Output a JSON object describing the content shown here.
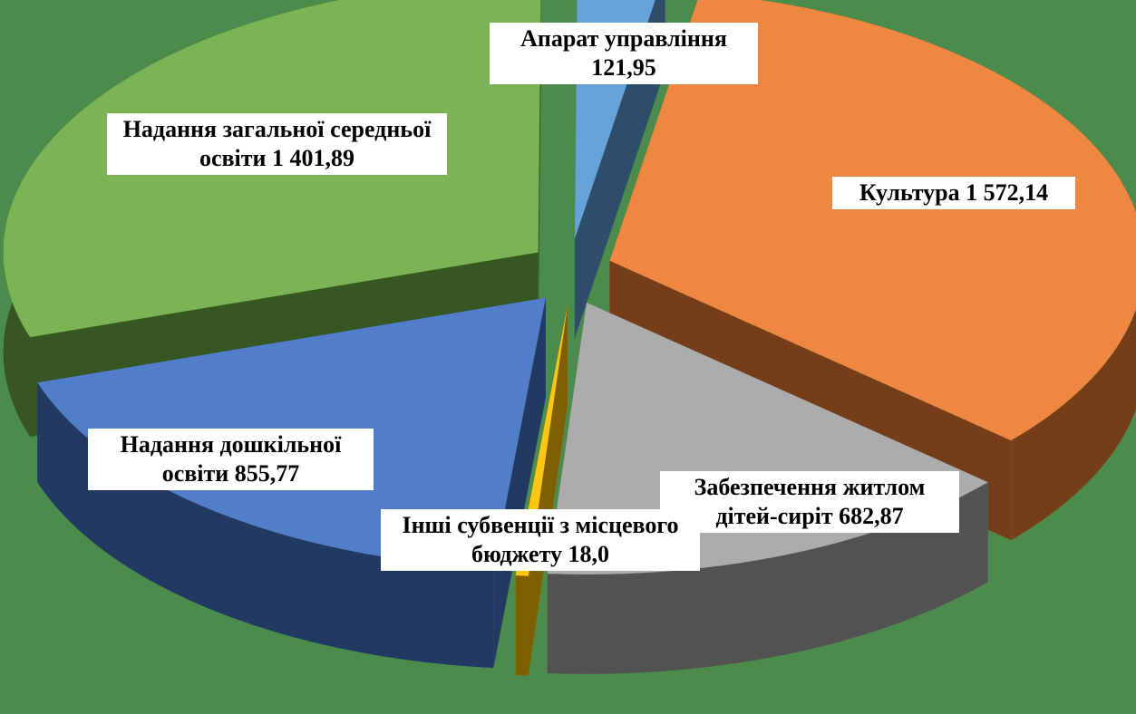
{
  "chart_data": {
    "type": "pie3d",
    "categories": [
      "Апарат управління",
      "Культура",
      "Забезпечення житлом дітей-сиріт",
      "Інші субвенції з місцевого бюджету",
      "Надання дошкільної освіти",
      "Надання загальної середньої освіти"
    ],
    "values": [
      121.95,
      1572.14,
      682.87,
      18.0,
      855.77,
      1401.89
    ],
    "value_labels": [
      "121,95",
      "1 572,14",
      "682,87",
      "18,0",
      "855,77",
      "1 401,89"
    ],
    "colors": [
      "#5b9bd5",
      "#ed7d31",
      "#a5a5a5",
      "#ffc000",
      "#4472c4",
      "#70ad47"
    ]
  }
}
